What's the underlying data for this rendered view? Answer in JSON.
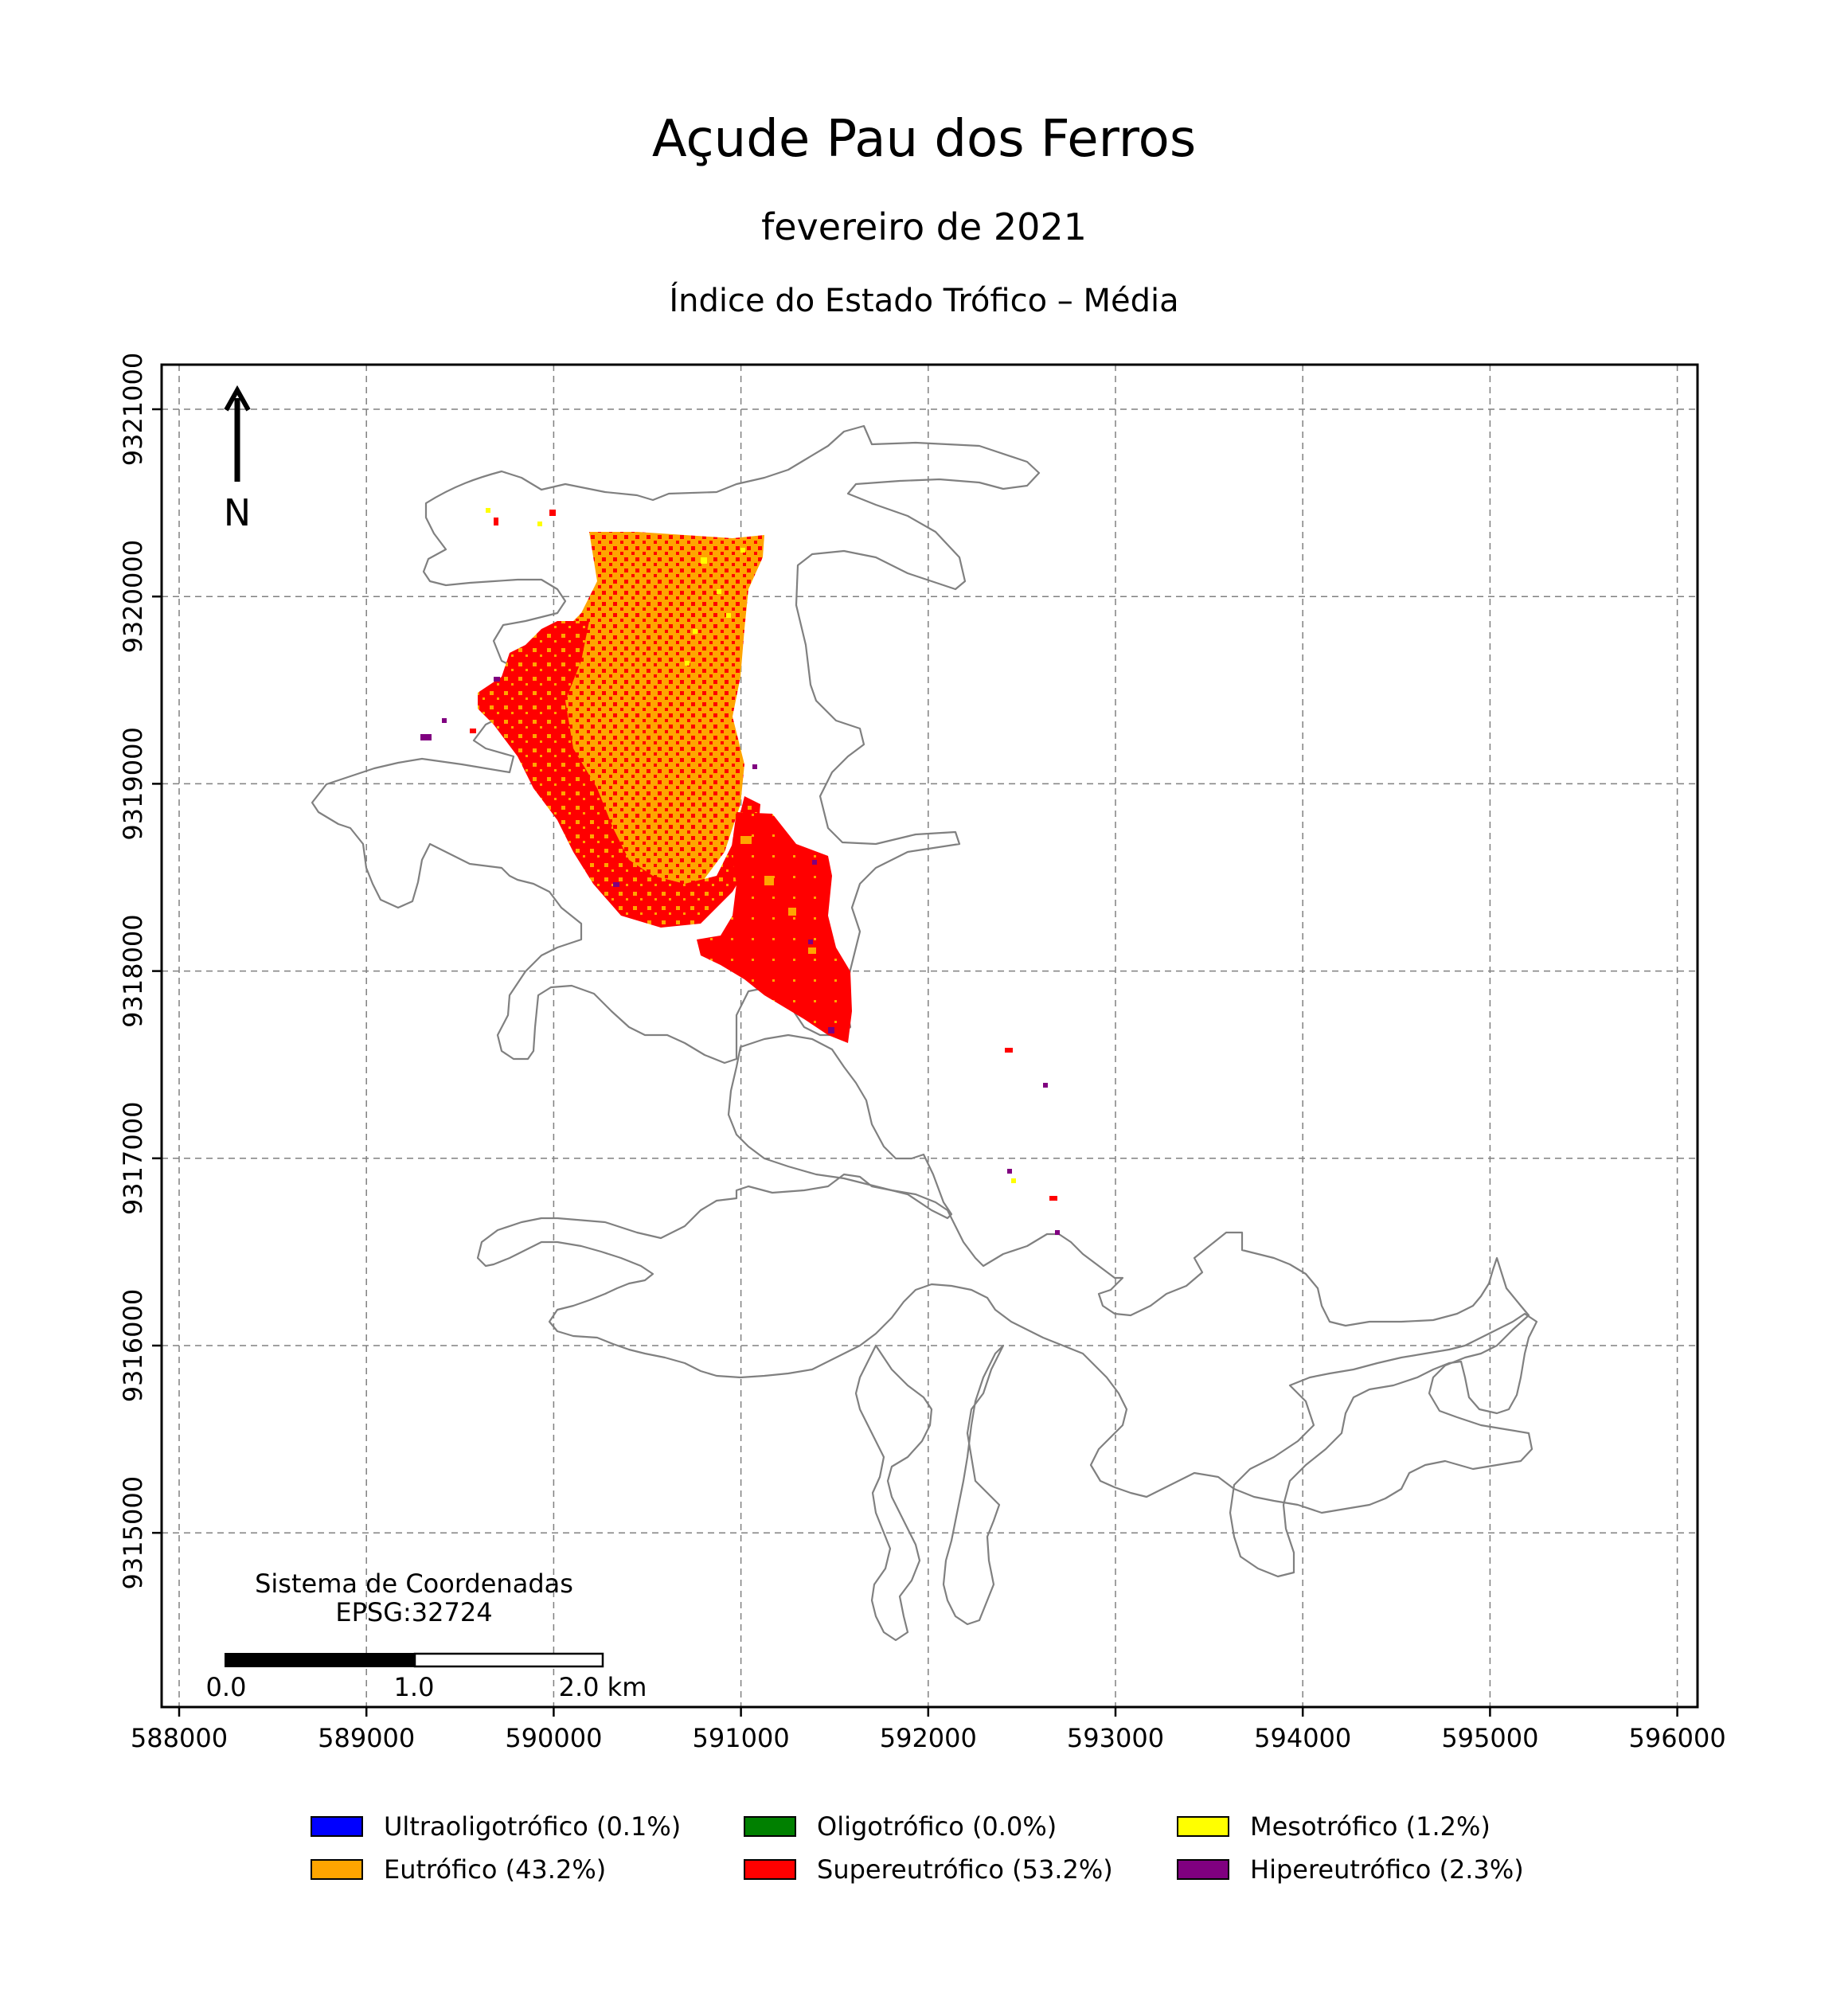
{
  "title": "Açude Pau dos Ferros",
  "subtitle": "fevereiro de 2021",
  "index_title": "Índice do Estado Trófico – Média",
  "north_label": "N",
  "crs": {
    "line1": "Sistema de Coordenadas",
    "line2": "EPSG:32724"
  },
  "scale_bar": {
    "labels": [
      "0.0",
      "1.0",
      "2.0 km"
    ]
  },
  "axes": {
    "x_ticks": [
      "588000",
      "589000",
      "590000",
      "591000",
      "592000",
      "593000",
      "594000",
      "595000",
      "596000"
    ],
    "y_ticks": [
      "9321000",
      "9320000",
      "9319000",
      "9318000",
      "9317000",
      "9316000",
      "9315000"
    ]
  },
  "legend": [
    {
      "label": "Ultraoligotrófico (0.1%)",
      "color": "#0000ff"
    },
    {
      "label": "Oligotrófico (0.0%)",
      "color": "#008000"
    },
    {
      "label": "Mesotrófico (1.2%)",
      "color": "#ffff00"
    },
    {
      "label": "Eutrófico (43.2%)",
      "color": "#ffa500"
    },
    {
      "label": "Supereutrófico (53.2%)",
      "color": "#ff0000"
    },
    {
      "label": "Hipereutrófico (2.3%)",
      "color": "#800080"
    }
  ],
  "colors": {
    "outline": "#808080",
    "grid": "#808080"
  }
}
